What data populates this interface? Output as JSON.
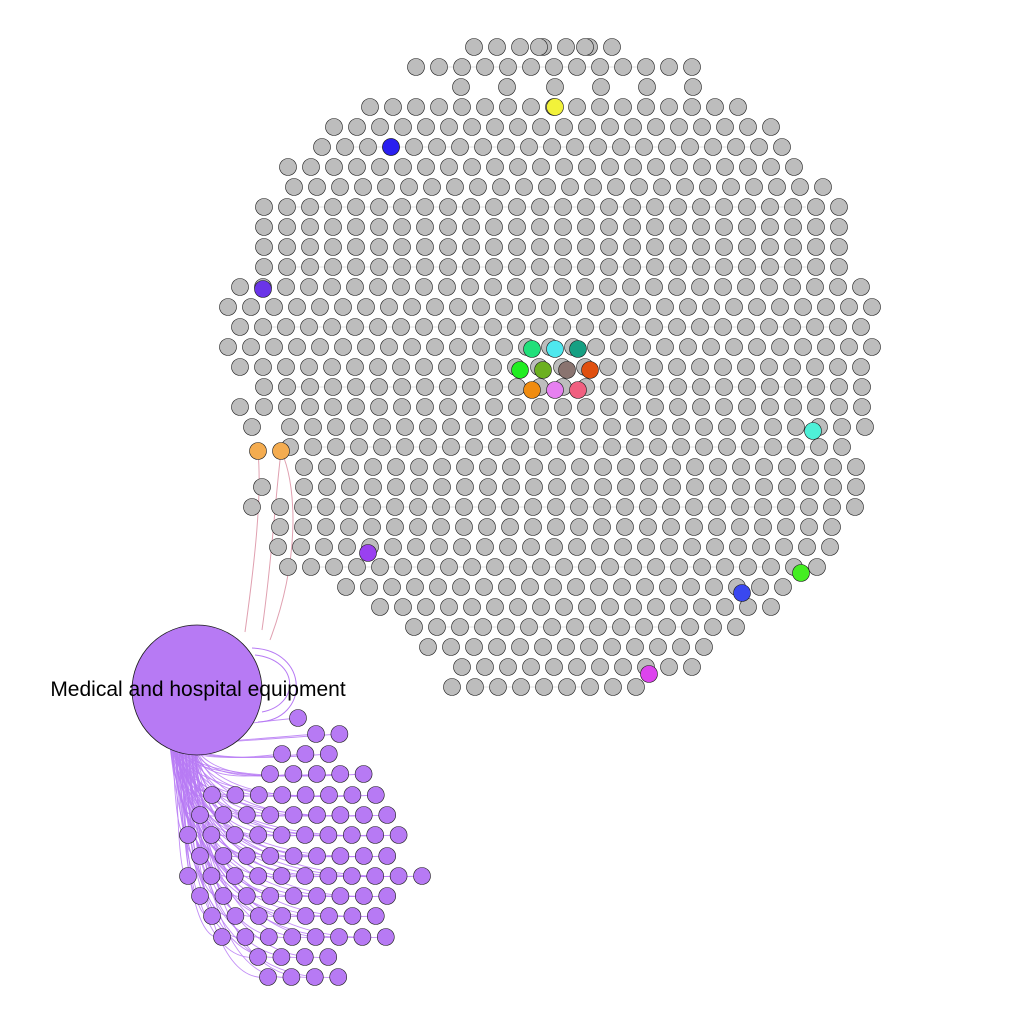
{
  "hub": {
    "label": "Medical and hospital equipment",
    "color": "#b77af4"
  },
  "colors": {
    "grey_node": "#bdbdbd",
    "node_stroke": "#1a1a1a",
    "cluster_node": "#b77af4",
    "cluster_edge": "#b77af4",
    "bridge_edge": "#e0a0b0"
  },
  "highlighted_nodes": [
    {
      "name": "yellow-node",
      "color": "#f2f23a"
    },
    {
      "name": "blue-node",
      "color": "#2a1ff0"
    },
    {
      "name": "violet-node",
      "color": "#6a35e8"
    },
    {
      "name": "green-node",
      "color": "#22e07a"
    },
    {
      "name": "cyan-node",
      "color": "#4ee8ee"
    },
    {
      "name": "teal-node",
      "color": "#16a083"
    },
    {
      "name": "lime-node",
      "color": "#22ee22"
    },
    {
      "name": "olive-node",
      "color": "#6cb020"
    },
    {
      "name": "brown-node",
      "color": "#8a7470"
    },
    {
      "name": "red-orange-node",
      "color": "#e05010"
    },
    {
      "name": "orange-node",
      "color": "#f08c10"
    },
    {
      "name": "pink-node",
      "color": "#e680f0"
    },
    {
      "name": "rose-node",
      "color": "#f06080"
    },
    {
      "name": "aqua-node",
      "color": "#4ef0d8"
    },
    {
      "name": "peach-node-1",
      "color": "#f4ac50"
    },
    {
      "name": "peach-node-2",
      "color": "#f4ac50"
    },
    {
      "name": "purple-node",
      "color": "#9a40f0"
    },
    {
      "name": "bright-green-node",
      "color": "#44ee22"
    },
    {
      "name": "royal-blue-node",
      "color": "#3a48f0"
    },
    {
      "name": "magenta-node",
      "color": "#dd44ee"
    }
  ]
}
